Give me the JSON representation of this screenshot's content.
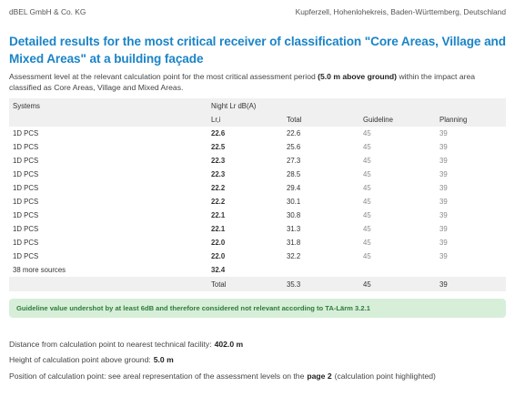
{
  "header": {
    "company": "dBEL GmbH & Co. KG",
    "location": "Kupferzell, Hohenlohekreis, Baden-Württemberg, Deutschland"
  },
  "title": "Detailed results for the most critical receiver of classification \"Core Areas, Village and Mixed Areas\" at a building façade",
  "intro": {
    "before": "Assessment level at the relevant calculation point for the most critical assessment period",
    "bold": "(5.0 m above ground)",
    "after": "within the impact area classified as Core Areas, Village and Mixed Areas."
  },
  "table": {
    "col_systems": "Systems",
    "group_header": "Night Lr dB(A)",
    "col_lri": "Lr,i",
    "col_total": "Total",
    "col_guideline": "Guideline",
    "col_planning": "Planning",
    "rows": [
      {
        "system": "1D PCS",
        "lri": "22.6",
        "total": "22.6",
        "guideline": "45",
        "planning": "39"
      },
      {
        "system": "1D PCS",
        "lri": "22.5",
        "total": "25.6",
        "guideline": "45",
        "planning": "39"
      },
      {
        "system": "1D PCS",
        "lri": "22.3",
        "total": "27.3",
        "guideline": "45",
        "planning": "39"
      },
      {
        "system": "1D PCS",
        "lri": "22.3",
        "total": "28.5",
        "guideline": "45",
        "planning": "39"
      },
      {
        "system": "1D PCS",
        "lri": "22.2",
        "total": "29.4",
        "guideline": "45",
        "planning": "39"
      },
      {
        "system": "1D PCS",
        "lri": "22.2",
        "total": "30.1",
        "guideline": "45",
        "planning": "39"
      },
      {
        "system": "1D PCS",
        "lri": "22.1",
        "total": "30.8",
        "guideline": "45",
        "planning": "39"
      },
      {
        "system": "1D PCS",
        "lri": "22.1",
        "total": "31.3",
        "guideline": "45",
        "planning": "39"
      },
      {
        "system": "1D PCS",
        "lri": "22.0",
        "total": "31.8",
        "guideline": "45",
        "planning": "39"
      },
      {
        "system": "1D PCS",
        "lri": "22.0",
        "total": "32.2",
        "guideline": "45",
        "planning": "39"
      }
    ],
    "more_sources": {
      "label": "38 more sources",
      "lri": "32.4"
    },
    "total_row": {
      "label": "Total",
      "total": "35.3",
      "guideline": "45",
      "planning": "39"
    }
  },
  "notice": "Guideline value undershot by at least 6dB and therefore considered not relevant according to TA-Lärm 3.2.1",
  "facts": {
    "distance_label": "Distance from calculation point to nearest technical facility:",
    "distance_value": "402.0 m",
    "height_label": "Height of calculation point above ground:",
    "height_value": "5.0 m",
    "position_label": "Position of calculation point: see areal representation of the assessment levels on the",
    "position_page": "page 2",
    "position_suffix": "(calculation point highlighted)"
  }
}
